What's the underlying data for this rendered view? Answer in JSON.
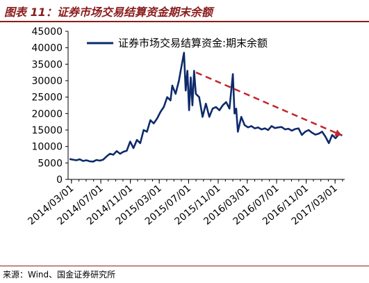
{
  "title": "图表 11：证券市场交易结算资金期末余额",
  "source": "来源：Wind、国金证券研究所",
  "colors": {
    "line": "#0d2a6b",
    "trend": "#c0272d",
    "header": "#8a1c1c"
  },
  "chart_data": {
    "type": "line",
    "title": "",
    "xlabel": "",
    "ylabel": "",
    "ylim": [
      0,
      45000
    ],
    "yticks": [
      0,
      5000,
      10000,
      15000,
      20000,
      25000,
      30000,
      35000,
      40000,
      45000
    ],
    "x_tick_labels": [
      "2014/03/01",
      "2014/07/01",
      "2014/11/01",
      "2015/03/01",
      "2015/07/01",
      "2015/11/01",
      "2016/03/01",
      "2016/07/01",
      "2016/11/01",
      "2017/03/01"
    ],
    "grid": false,
    "legend_position": "top",
    "series": [
      {
        "name": "证券市场交易结算资金:期末余额",
        "x": [
          "2014-02-21",
          "2014-03-07",
          "2014-03-21",
          "2014-04-04",
          "2014-04-18",
          "2014-05-02",
          "2014-05-16",
          "2014-05-30",
          "2014-06-13",
          "2014-06-27",
          "2014-07-11",
          "2014-07-25",
          "2014-08-08",
          "2014-08-22",
          "2014-09-05",
          "2014-09-19",
          "2014-10-03",
          "2014-10-17",
          "2014-10-31",
          "2014-11-14",
          "2014-11-28",
          "2014-12-12",
          "2014-12-26",
          "2015-01-09",
          "2015-01-23",
          "2015-02-06",
          "2015-02-20",
          "2015-03-06",
          "2015-03-20",
          "2015-04-03",
          "2015-04-17",
          "2015-04-24",
          "2015-05-08",
          "2015-05-22",
          "2015-05-29",
          "2015-06-12",
          "2015-06-19",
          "2015-06-26",
          "2015-07-03",
          "2015-07-10",
          "2015-07-17",
          "2015-07-24",
          "2015-07-31",
          "2015-08-14",
          "2015-08-28",
          "2015-09-11",
          "2015-09-25",
          "2015-10-09",
          "2015-10-23",
          "2015-11-06",
          "2015-11-20",
          "2015-12-04",
          "2015-12-18",
          "2016-01-01",
          "2016-01-08",
          "2016-01-15",
          "2016-01-22",
          "2016-02-05",
          "2016-02-19",
          "2016-03-04",
          "2016-03-18",
          "2016-04-01",
          "2016-04-15",
          "2016-04-29",
          "2016-05-13",
          "2016-05-27",
          "2016-06-10",
          "2016-06-24",
          "2016-07-08",
          "2016-07-22",
          "2016-08-05",
          "2016-08-19",
          "2016-09-02",
          "2016-09-16",
          "2016-09-30",
          "2016-10-14",
          "2016-10-28",
          "2016-11-11",
          "2016-11-25",
          "2016-12-09",
          "2016-12-23",
          "2017-01-06",
          "2017-01-20",
          "2017-02-03",
          "2017-02-17",
          "2017-03-03",
          "2017-03-17",
          "2017-03-31"
        ],
        "values": [
          6200,
          6000,
          5800,
          6100,
          5600,
          5800,
          5500,
          5400,
          5900,
          5700,
          6000,
          7000,
          7800,
          7500,
          8600,
          7800,
          8400,
          8700,
          11500,
          9500,
          12000,
          11000,
          15000,
          14500,
          18000,
          17000,
          18500,
          20500,
          22000,
          25000,
          24000,
          28500,
          26000,
          30000,
          33000,
          38500,
          27000,
          33000,
          21000,
          31000,
          22500,
          33000,
          26000,
          25000,
          19000,
          23000,
          19000,
          21500,
          22000,
          21000,
          22500,
          23500,
          21500,
          32000,
          20000,
          21500,
          14500,
          19000,
          16500,
          15800,
          16200,
          15500,
          15800,
          15200,
          15500,
          15000,
          16200,
          15600,
          15800,
          15900,
          15200,
          15400,
          14800,
          15300,
          15500,
          13500,
          14500,
          15000,
          14200,
          13600,
          13900,
          14500,
          13000,
          11000,
          13500,
          12500,
          13700,
          13400
        ]
      }
    ],
    "annotations": [
      {
        "type": "arrow",
        "style": "dashed",
        "from": {
          "x": "2015-08-01",
          "y": 32500
        },
        "to": {
          "x": "2017-03-25",
          "y": 13500
        }
      }
    ]
  }
}
